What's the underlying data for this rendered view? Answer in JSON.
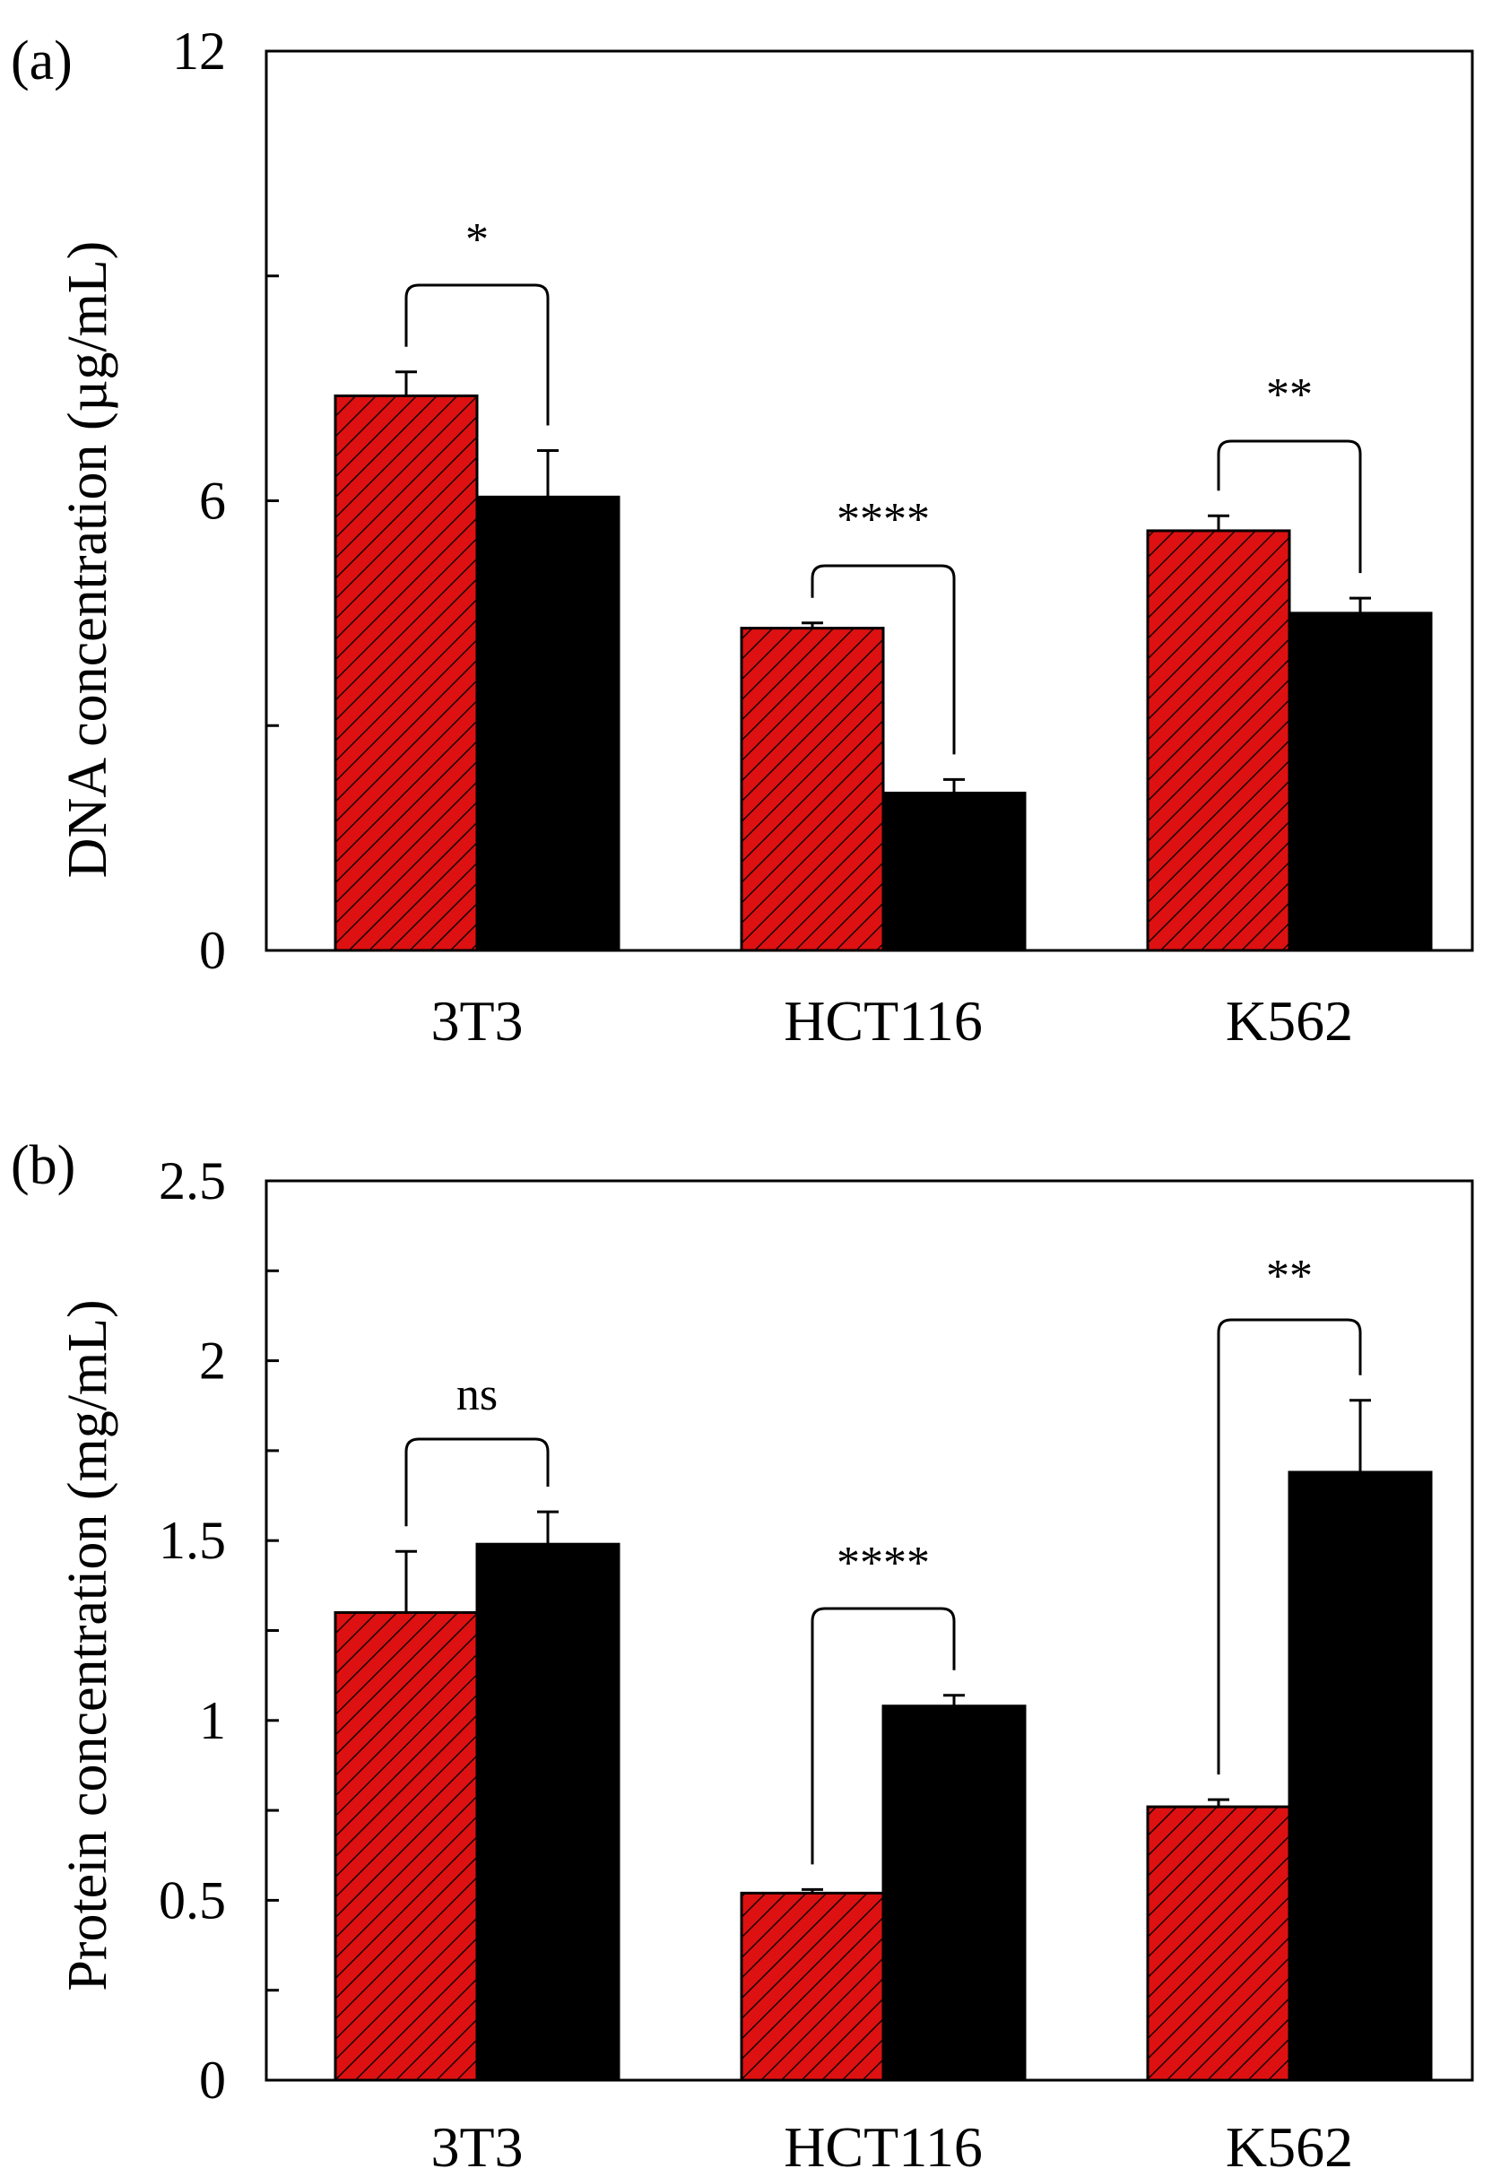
{
  "chart_data": [
    {
      "type": "bar",
      "panel": "(a)",
      "title": "",
      "xlabel": "",
      "ylabel": "DNA concentration (µg/mL)",
      "ylim": [
        0,
        12
      ],
      "major_ticks": [
        0,
        6,
        12
      ],
      "minor_ticks": [
        3,
        9
      ],
      "categories": [
        "3T3",
        "HCT116",
        "K562"
      ],
      "series": [
        {
          "name": "red-hatched",
          "color": "#dd1111",
          "pattern": "hatched",
          "values": [
            7.4,
            4.3,
            5.6
          ],
          "errors": [
            0.32,
            0.07,
            0.2
          ]
        },
        {
          "name": "black",
          "color": "#000000",
          "pattern": "solid",
          "values": [
            6.05,
            2.1,
            4.5
          ],
          "errors": [
            0.62,
            0.18,
            0.2
          ]
        }
      ],
      "significance": [
        {
          "category": "3T3",
          "label": "*"
        },
        {
          "category": "HCT116",
          "label": "****"
        },
        {
          "category": "K562",
          "label": "**"
        }
      ]
    },
    {
      "type": "bar",
      "panel": "(b)",
      "title": "",
      "xlabel": "",
      "ylabel": "Protein concentration (mg/mL)",
      "ylim": [
        0,
        2.5
      ],
      "major_ticks": [
        0,
        0.5,
        1,
        1.5,
        2,
        2.5
      ],
      "major_tick_labels": [
        "0",
        "0.5",
        "1",
        "1.5",
        "2",
        "2.5"
      ],
      "minor_ticks": [
        0.25,
        0.75,
        1.25,
        1.75,
        2.25
      ],
      "categories": [
        "3T3",
        "HCT116",
        "K562"
      ],
      "series": [
        {
          "name": "red-hatched",
          "color": "#dd1111",
          "pattern": "hatched",
          "values": [
            1.3,
            0.52,
            0.76
          ],
          "errors": [
            0.17,
            0.01,
            0.02
          ]
        },
        {
          "name": "black",
          "color": "#000000",
          "pattern": "solid",
          "values": [
            1.49,
            1.04,
            1.69
          ],
          "errors": [
            0.09,
            0.03,
            0.2
          ]
        }
      ],
      "significance": [
        {
          "category": "3T3",
          "label": "ns"
        },
        {
          "category": "HCT116",
          "label": "****"
        },
        {
          "category": "K562",
          "label": "**"
        }
      ]
    }
  ]
}
